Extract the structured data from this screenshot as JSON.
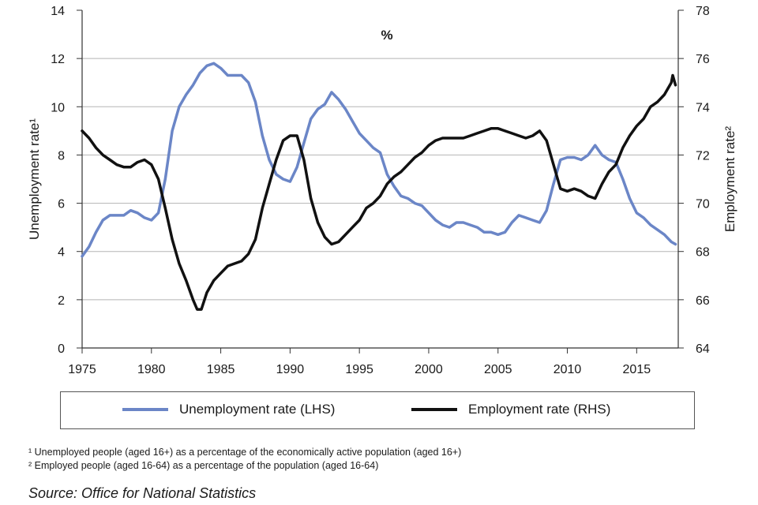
{
  "chart_data": {
    "type": "line",
    "title": "%",
    "ylabel_left": "Unemployment rate¹",
    "ylabel_right": "Employment rate²",
    "x_ticks": [
      "1975",
      "1980",
      "1985",
      "1990",
      "1995",
      "2000",
      "2005",
      "2010",
      "2015"
    ],
    "x_range": [
      1975,
      2018
    ],
    "y_left_ticks": [
      "0",
      "2",
      "4",
      "6",
      "8",
      "10",
      "12",
      "14"
    ],
    "y_left_range": [
      0,
      14
    ],
    "y_right_ticks": [
      "64",
      "66",
      "68",
      "70",
      "72",
      "74",
      "76",
      "78"
    ],
    "y_right_range": [
      64,
      78
    ],
    "series": [
      {
        "name": "Unemployment rate (LHS)",
        "axis": "left",
        "color": "#6b86c7",
        "points": [
          [
            1975.0,
            3.8
          ],
          [
            1975.5,
            4.2
          ],
          [
            1976.0,
            4.8
          ],
          [
            1976.5,
            5.3
          ],
          [
            1977.0,
            5.5
          ],
          [
            1977.5,
            5.5
          ],
          [
            1978.0,
            5.5
          ],
          [
            1978.5,
            5.7
          ],
          [
            1979.0,
            5.6
          ],
          [
            1979.5,
            5.4
          ],
          [
            1980.0,
            5.3
          ],
          [
            1980.5,
            5.6
          ],
          [
            1981.0,
            7.0
          ],
          [
            1981.5,
            9.0
          ],
          [
            1982.0,
            10.0
          ],
          [
            1982.5,
            10.5
          ],
          [
            1983.0,
            10.9
          ],
          [
            1983.5,
            11.4
          ],
          [
            1984.0,
            11.7
          ],
          [
            1984.5,
            11.8
          ],
          [
            1985.0,
            11.6
          ],
          [
            1985.5,
            11.3
          ],
          [
            1986.0,
            11.3
          ],
          [
            1986.5,
            11.3
          ],
          [
            1987.0,
            11.0
          ],
          [
            1987.5,
            10.2
          ],
          [
            1988.0,
            8.8
          ],
          [
            1988.5,
            7.8
          ],
          [
            1989.0,
            7.2
          ],
          [
            1989.5,
            7.0
          ],
          [
            1990.0,
            6.9
          ],
          [
            1990.5,
            7.5
          ],
          [
            1991.0,
            8.5
          ],
          [
            1991.5,
            9.5
          ],
          [
            1992.0,
            9.9
          ],
          [
            1992.5,
            10.1
          ],
          [
            1993.0,
            10.6
          ],
          [
            1993.5,
            10.3
          ],
          [
            1994.0,
            9.9
          ],
          [
            1994.5,
            9.4
          ],
          [
            1995.0,
            8.9
          ],
          [
            1995.5,
            8.6
          ],
          [
            1996.0,
            8.3
          ],
          [
            1996.5,
            8.1
          ],
          [
            1997.0,
            7.2
          ],
          [
            1997.5,
            6.7
          ],
          [
            1998.0,
            6.3
          ],
          [
            1998.5,
            6.2
          ],
          [
            1999.0,
            6.0
          ],
          [
            1999.5,
            5.9
          ],
          [
            2000.0,
            5.6
          ],
          [
            2000.5,
            5.3
          ],
          [
            2001.0,
            5.1
          ],
          [
            2001.5,
            5.0
          ],
          [
            2002.0,
            5.2
          ],
          [
            2002.5,
            5.2
          ],
          [
            2003.0,
            5.1
          ],
          [
            2003.5,
            5.0
          ],
          [
            2004.0,
            4.8
          ],
          [
            2004.5,
            4.8
          ],
          [
            2005.0,
            4.7
          ],
          [
            2005.5,
            4.8
          ],
          [
            2006.0,
            5.2
          ],
          [
            2006.5,
            5.5
          ],
          [
            2007.0,
            5.4
          ],
          [
            2007.5,
            5.3
          ],
          [
            2008.0,
            5.2
          ],
          [
            2008.5,
            5.7
          ],
          [
            2009.0,
            6.8
          ],
          [
            2009.5,
            7.8
          ],
          [
            2010.0,
            7.9
          ],
          [
            2010.5,
            7.9
          ],
          [
            2011.0,
            7.8
          ],
          [
            2011.5,
            8.0
          ],
          [
            2012.0,
            8.4
          ],
          [
            2012.5,
            8.0
          ],
          [
            2013.0,
            7.8
          ],
          [
            2013.5,
            7.7
          ],
          [
            2014.0,
            7.0
          ],
          [
            2014.5,
            6.2
          ],
          [
            2015.0,
            5.6
          ],
          [
            2015.5,
            5.4
          ],
          [
            2016.0,
            5.1
          ],
          [
            2016.5,
            4.9
          ],
          [
            2017.0,
            4.7
          ],
          [
            2017.5,
            4.4
          ],
          [
            2017.8,
            4.3
          ]
        ]
      },
      {
        "name": "Employment rate (RHS)",
        "axis": "right",
        "color": "#111111",
        "points": [
          [
            1975.0,
            73.0
          ],
          [
            1975.5,
            72.7
          ],
          [
            1976.0,
            72.3
          ],
          [
            1976.5,
            72.0
          ],
          [
            1977.0,
            71.8
          ],
          [
            1977.5,
            71.6
          ],
          [
            1978.0,
            71.5
          ],
          [
            1978.5,
            71.5
          ],
          [
            1979.0,
            71.7
          ],
          [
            1979.5,
            71.8
          ],
          [
            1980.0,
            71.6
          ],
          [
            1980.5,
            71.0
          ],
          [
            1981.0,
            69.8
          ],
          [
            1981.5,
            68.5
          ],
          [
            1982.0,
            67.5
          ],
          [
            1982.5,
            66.8
          ],
          [
            1983.0,
            66.0
          ],
          [
            1983.3,
            65.6
          ],
          [
            1983.6,
            65.6
          ],
          [
            1984.0,
            66.3
          ],
          [
            1984.5,
            66.8
          ],
          [
            1985.0,
            67.1
          ],
          [
            1985.5,
            67.4
          ],
          [
            1986.0,
            67.5
          ],
          [
            1986.5,
            67.6
          ],
          [
            1987.0,
            67.9
          ],
          [
            1987.5,
            68.5
          ],
          [
            1988.0,
            69.8
          ],
          [
            1988.5,
            70.8
          ],
          [
            1989.0,
            71.8
          ],
          [
            1989.5,
            72.6
          ],
          [
            1990.0,
            72.8
          ],
          [
            1990.5,
            72.8
          ],
          [
            1991.0,
            71.8
          ],
          [
            1991.5,
            70.2
          ],
          [
            1992.0,
            69.2
          ],
          [
            1992.5,
            68.6
          ],
          [
            1993.0,
            68.3
          ],
          [
            1993.5,
            68.4
          ],
          [
            1994.0,
            68.7
          ],
          [
            1994.5,
            69.0
          ],
          [
            1995.0,
            69.3
          ],
          [
            1995.5,
            69.8
          ],
          [
            1996.0,
            70.0
          ],
          [
            1996.5,
            70.3
          ],
          [
            1997.0,
            70.8
          ],
          [
            1997.5,
            71.1
          ],
          [
            1998.0,
            71.3
          ],
          [
            1998.5,
            71.6
          ],
          [
            1999.0,
            71.9
          ],
          [
            1999.5,
            72.1
          ],
          [
            2000.0,
            72.4
          ],
          [
            2000.5,
            72.6
          ],
          [
            2001.0,
            72.7
          ],
          [
            2001.5,
            72.7
          ],
          [
            2002.0,
            72.7
          ],
          [
            2002.5,
            72.7
          ],
          [
            2003.0,
            72.8
          ],
          [
            2003.5,
            72.9
          ],
          [
            2004.0,
            73.0
          ],
          [
            2004.5,
            73.1
          ],
          [
            2005.0,
            73.1
          ],
          [
            2005.5,
            73.0
          ],
          [
            2006.0,
            72.9
          ],
          [
            2006.5,
            72.8
          ],
          [
            2007.0,
            72.7
          ],
          [
            2007.5,
            72.8
          ],
          [
            2008.0,
            73.0
          ],
          [
            2008.5,
            72.6
          ],
          [
            2009.0,
            71.6
          ],
          [
            2009.5,
            70.6
          ],
          [
            2010.0,
            70.5
          ],
          [
            2010.5,
            70.6
          ],
          [
            2011.0,
            70.5
          ],
          [
            2011.5,
            70.3
          ],
          [
            2012.0,
            70.2
          ],
          [
            2012.5,
            70.8
          ],
          [
            2013.0,
            71.3
          ],
          [
            2013.5,
            71.6
          ],
          [
            2014.0,
            72.3
          ],
          [
            2014.5,
            72.8
          ],
          [
            2015.0,
            73.2
          ],
          [
            2015.5,
            73.5
          ],
          [
            2016.0,
            74.0
          ],
          [
            2016.5,
            74.2
          ],
          [
            2017.0,
            74.5
          ],
          [
            2017.5,
            75.0
          ],
          [
            2017.6,
            75.3
          ],
          [
            2017.8,
            74.9
          ]
        ]
      }
    ]
  },
  "legend": {
    "unemployment": "Unemployment rate (LHS)",
    "employment": "Employment rate (RHS)"
  },
  "footnotes": {
    "note1": "¹ Unemployed people (aged 16+) as a percentage of the economically active population (aged 16+)",
    "note2": "² Employed people (aged 16-64) as a percentage of the population (aged 16-64)"
  },
  "source": "Source: Office for National Statistics"
}
